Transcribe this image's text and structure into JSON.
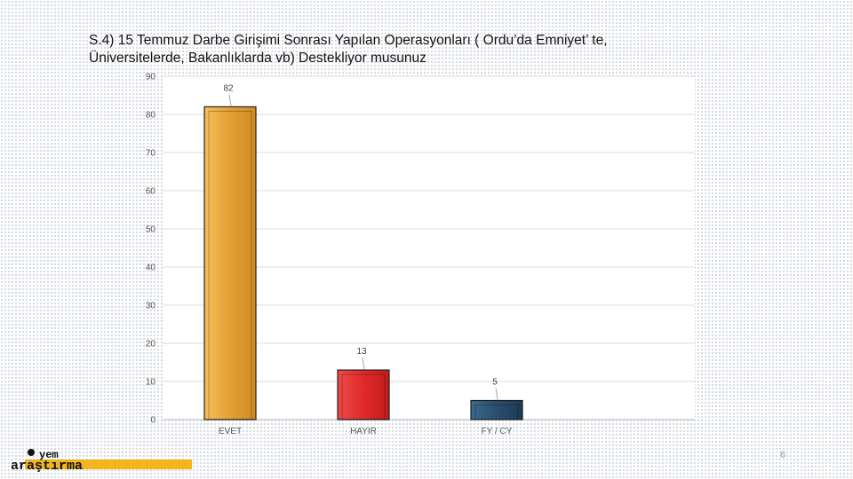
{
  "slide": {
    "title_line1": "S.4) 15 Temmuz Darbe Girişimi Sonrası Yapılan Operasyonları ( Ordu’da Emniyet’ te,",
    "title_line2": "Üniversitelerde, Bakanlıklarda vb) Destekliyor musunuz",
    "page_number": "6",
    "logo_text_top": "yem",
    "logo_text_bottom": "araştırma"
  },
  "chart_data": {
    "type": "bar",
    "categories": [
      "EVET",
      "HAYIR",
      "FY / CY"
    ],
    "values": [
      82,
      13,
      5
    ],
    "colors": [
      "#e3a033",
      "#e02a2a",
      "#2a4e6e"
    ],
    "title": "S.4) 15 Temmuz Darbe Girişimi Sonrası Yapılan Operasyonları ( Ordu’da Emniyet’ te, Üniversitelerde, Bakanlıklarda vb) Destekliyor musunuz",
    "xlabel": "",
    "ylabel": "",
    "ylim": [
      0,
      90
    ],
    "yticks": [
      0,
      10,
      20,
      30,
      40,
      50,
      60,
      70,
      80,
      90
    ],
    "grid": true,
    "legend": "none",
    "data_labels": [
      "82",
      "13",
      "5"
    ]
  }
}
